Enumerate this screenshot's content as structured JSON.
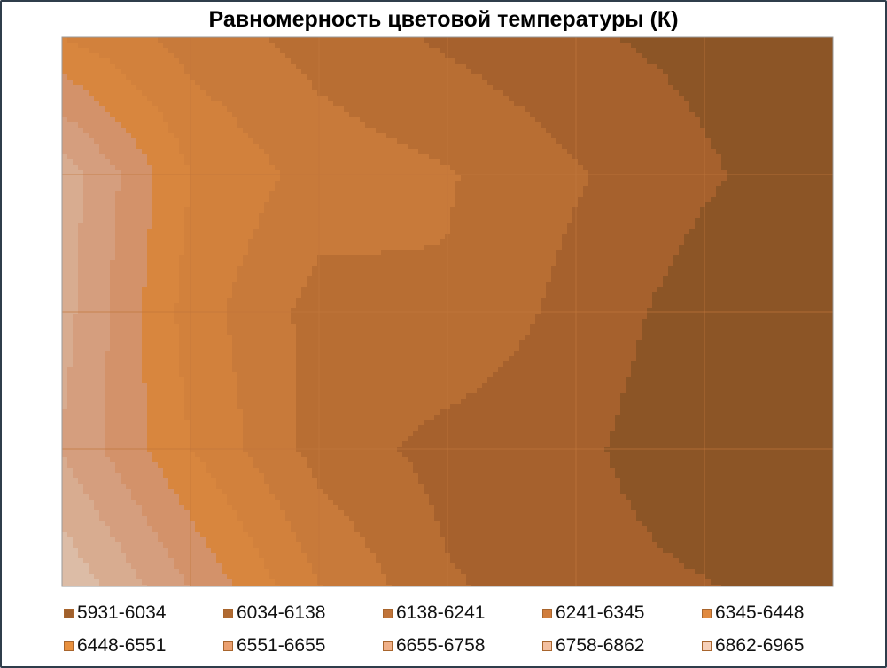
{
  "chart_data": {
    "type": "contour",
    "title": "Равномерность цветовой температуры (К)",
    "grid_columns": 7,
    "grid_rows": 5,
    "values": [
      [
        6450,
        6300,
        6200,
        6120,
        6050,
        6000,
        5940
      ],
      [
        6820,
        6450,
        6300,
        6250,
        6150,
        6050,
        5960
      ],
      [
        6800,
        6400,
        6200,
        6230,
        6100,
        5980,
        5940
      ],
      [
        6750,
        6450,
        6200,
        6100,
        6060,
        5950,
        5940
      ],
      [
        6950,
        6650,
        6350,
        6150,
        6080,
        6040,
        5990
      ]
    ],
    "bands": [
      {
        "label": "5931-6034",
        "min": 5931,
        "max": 6034,
        "color": "#8c5526",
        "swatch": "#a0602c"
      },
      {
        "label": "6034-6138",
        "min": 6034,
        "max": 6138,
        "color": "#a6612d",
        "swatch": "#b06a32"
      },
      {
        "label": "6138-6241",
        "min": 6138,
        "max": 6241,
        "color": "#b86e33",
        "swatch": "#c0743a"
      },
      {
        "label": "6241-6345",
        "min": 6241,
        "max": 6345,
        "color": "#c87a3a",
        "swatch": "#d07d3c"
      },
      {
        "label": "6345-6448",
        "min": 6345,
        "max": 6448,
        "color": "#d2813c",
        "swatch": "#e08a40"
      },
      {
        "label": "6448-6551",
        "min": 6448,
        "max": 6551,
        "color": "#d8863e",
        "swatch": "#e8903e"
      },
      {
        "label": "6551-6655",
        "min": 6551,
        "max": 6655,
        "color": "#d3926a",
        "swatch": "#eba070"
      },
      {
        "label": "6655-6758",
        "min": 6655,
        "max": 6758,
        "color": "#d59e7e",
        "swatch": "#f0b088"
      },
      {
        "label": "6758-6862",
        "min": 6758,
        "max": 6862,
        "color": "#d8ac90",
        "swatch": "#f3c0a0"
      },
      {
        "label": "6862-6965",
        "min": 6862,
        "max": 6965,
        "color": "#dcbca6",
        "swatch": "#f6d0b8"
      }
    ],
    "legend_position": "bottom",
    "grid": true
  }
}
